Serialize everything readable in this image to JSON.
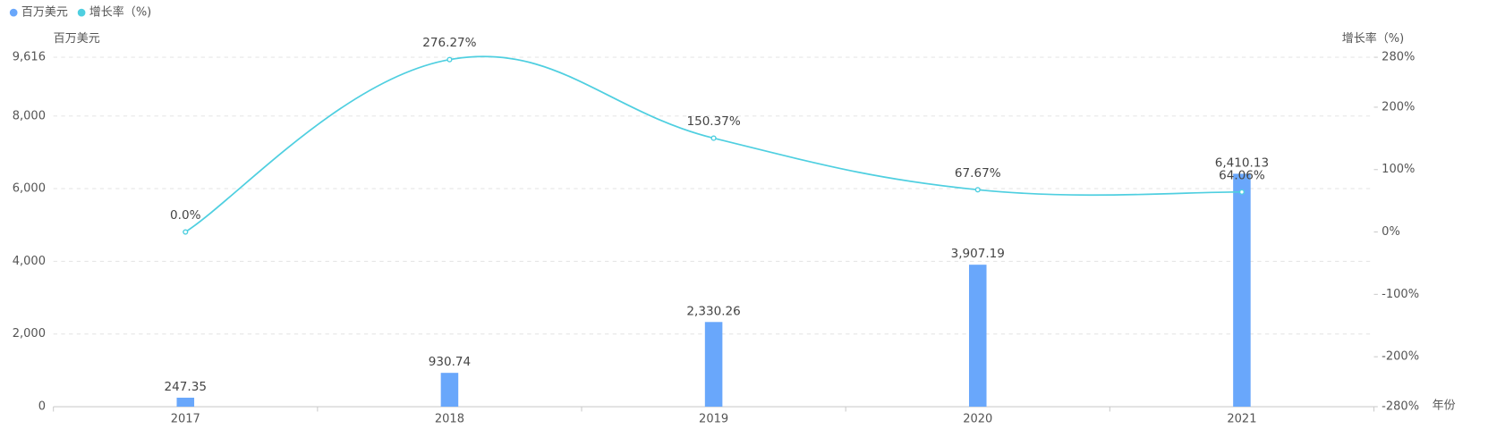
{
  "chart_data": {
    "type": "bar-line",
    "categories": [
      "2017",
      "2018",
      "2019",
      "2020",
      "2021"
    ],
    "x_label": "年份",
    "y_label": "百万美元",
    "y2_label": "增长率（%)",
    "series": [
      {
        "name": "百万美元",
        "type": "bar",
        "color": "#69a7fb",
        "values": [
          247.35,
          930.74,
          2330.26,
          3907.19,
          6410.13
        ],
        "value_labels": [
          "247.35",
          "930.74",
          "2,330.26",
          "3,907.19",
          "6,410.13"
        ]
      },
      {
        "name": "增长率（%)",
        "type": "line",
        "axis": "y2",
        "color": "#4fcfe0",
        "values": [
          0.0,
          276.27,
          150.37,
          67.67,
          64.06
        ],
        "value_labels": [
          "0.0%",
          "276.27%",
          "150.37%",
          "67.67%",
          "64.06%"
        ]
      }
    ],
    "ylim": [
      0,
      9616
    ],
    "yticks": [
      0,
      {
        "value": 2000,
        "label": "2,000"
      },
      {
        "value": 4000,
        "label": "4,000"
      },
      {
        "value": 6000,
        "label": "6,000"
      },
      {
        "value": 8000,
        "label": "8,000"
      },
      {
        "value": 9616,
        "label": "9,616"
      }
    ],
    "y2lim": [
      -280,
      280
    ],
    "y2ticks": [
      {
        "value": -280,
        "label": "-280%"
      },
      {
        "value": -200,
        "label": "-200%"
      },
      {
        "value": -100,
        "label": "-100%"
      },
      {
        "value": 0,
        "label": "0%"
      },
      {
        "value": 100,
        "label": "100%"
      },
      {
        "value": 200,
        "label": "200%"
      },
      {
        "value": 280,
        "label": "280%"
      }
    ],
    "grid": true
  }
}
